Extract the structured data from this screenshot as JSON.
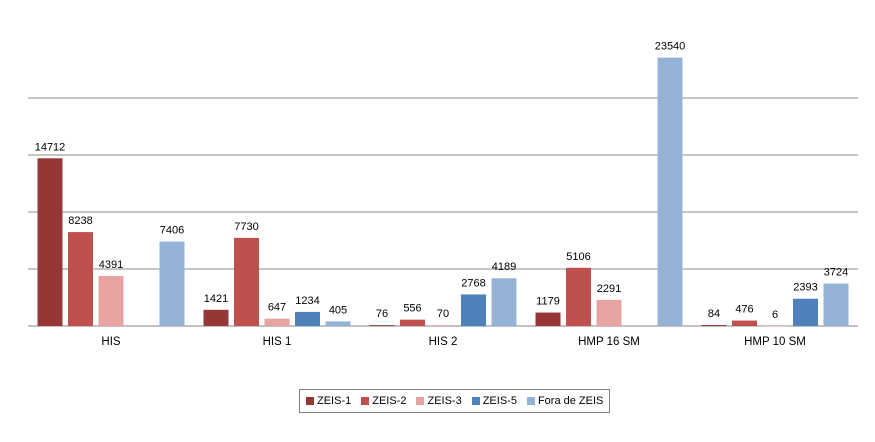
{
  "chart_data": {
    "type": "bar",
    "categories": [
      "HIS",
      "HIS 1",
      "HIS 2",
      "HMP 16 SM",
      "HMP 10 SM"
    ],
    "series": [
      {
        "name": "ZEIS-1",
        "color": "#953735",
        "values": [
          14712,
          1421,
          76,
          1179,
          84
        ]
      },
      {
        "name": "ZEIS-2",
        "color": "#c0504d",
        "values": [
          8238,
          7730,
          556,
          5106,
          476
        ]
      },
      {
        "name": "ZEIS-3",
        "color": "#e6a3a2",
        "values": [
          4391,
          647,
          70,
          2291,
          6
        ]
      },
      {
        "name": "ZEIS-5",
        "color": "#4f81bd",
        "values": [
          null,
          1234,
          2768,
          null,
          2393
        ]
      },
      {
        "name": "Fora de ZEIS",
        "color": "#95b3d7",
        "values": [
          7406,
          405,
          4189,
          23540,
          3724
        ]
      }
    ],
    "title": "",
    "xlabel": "",
    "ylabel": "",
    "ylim": [
      0,
      22500
    ],
    "y_tick_labels_shown": false,
    "grid": true,
    "data_labels": true,
    "legend_position": "bottom"
  }
}
